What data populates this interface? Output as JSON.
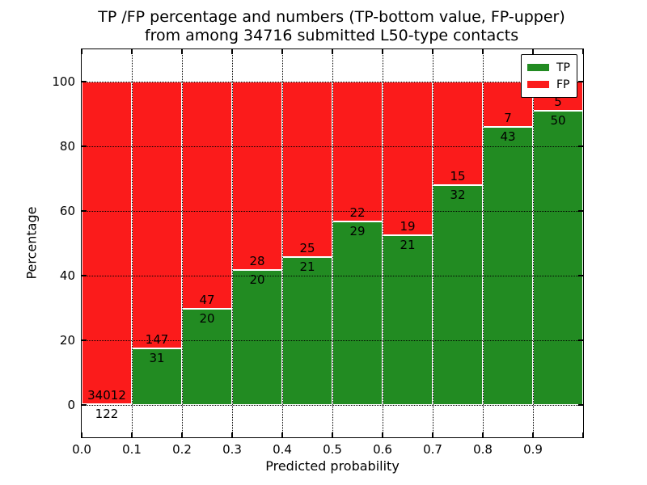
{
  "figure": {
    "title_line1": "TP /FP percentage and numbers (TP-bottom value, FP-upper)",
    "title_line2": "from among 34716 submitted L50-type contacts",
    "xlabel": "Predicted probability",
    "ylabel": "Percentage"
  },
  "legend": {
    "items": [
      {
        "label": "TP",
        "color": "#228B22"
      },
      {
        "label": "FP",
        "color": "#FB1B1B"
      }
    ]
  },
  "chart_data": {
    "type": "bar",
    "stacked": true,
    "normalized_to_percent": true,
    "title": "TP /FP percentage and numbers (TP-bottom value, FP-upper) from among 34716 submitted L50-type contacts",
    "xlabel": "Predicted probability",
    "ylabel": "Percentage",
    "total_submitted_contacts": "34716",
    "bins": [
      "0.0-0.1",
      "0.1-0.2",
      "0.2-0.3",
      "0.3-0.4",
      "0.4-0.5",
      "0.5-0.6",
      "0.6-0.7",
      "0.7-0.8",
      "0.8-0.9",
      "0.9-1.0"
    ],
    "series": [
      {
        "name": "TP",
        "color": "#228B22",
        "counts": [
          122,
          31,
          20,
          20,
          21,
          29,
          21,
          32,
          43,
          50
        ]
      },
      {
        "name": "FP",
        "color": "#FB1B1B",
        "counts": [
          34012,
          147,
          47,
          28,
          25,
          22,
          19,
          15,
          7,
          5
        ]
      }
    ],
    "tp_percent_of_bar": [
      0.36,
      17.42,
      29.85,
      41.67,
      45.65,
      56.86,
      52.5,
      68.09,
      86.0,
      90.91
    ],
    "xticks": [
      "0.0",
      "0.1",
      "0.2",
      "0.3",
      "0.4",
      "0.5",
      "0.6",
      "0.7",
      "0.8",
      "0.9"
    ],
    "yticks": [
      "0",
      "20",
      "40",
      "60",
      "80",
      "100"
    ],
    "xlim": [
      0.0,
      1.0
    ],
    "ylim": [
      -10,
      110
    ],
    "grid": true,
    "legend_position": "upper right"
  }
}
